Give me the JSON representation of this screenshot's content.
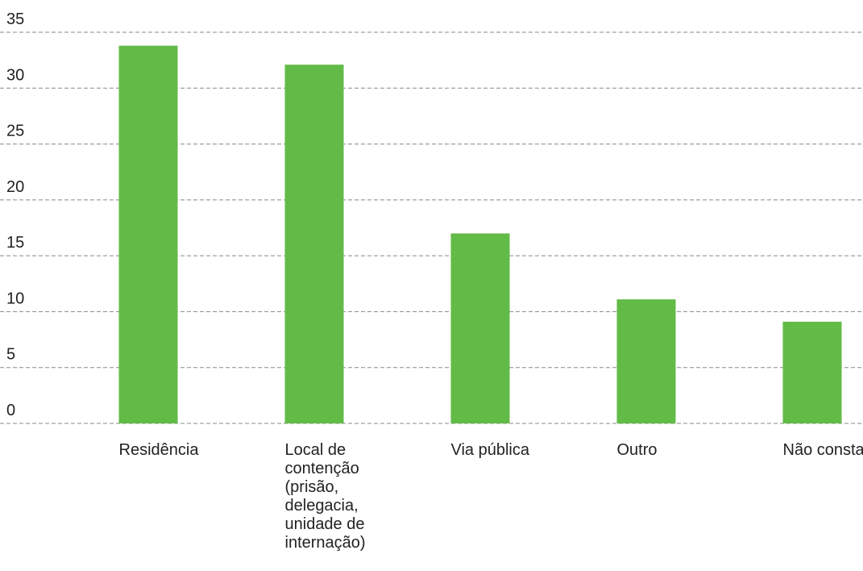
{
  "chart_data": {
    "type": "bar",
    "categories": [
      "Residência",
      "Local de contenção (prisão, delegacia, unidade de internação)",
      "Via pública",
      "Outro",
      "Não consta"
    ],
    "values": [
      33.8,
      32.1,
      17.0,
      11.1,
      9.1
    ],
    "color": "#62bb46",
    "ylim": [
      0,
      35
    ],
    "yticks": [
      0,
      5,
      10,
      15,
      20,
      25,
      30,
      35
    ],
    "grid": true
  }
}
